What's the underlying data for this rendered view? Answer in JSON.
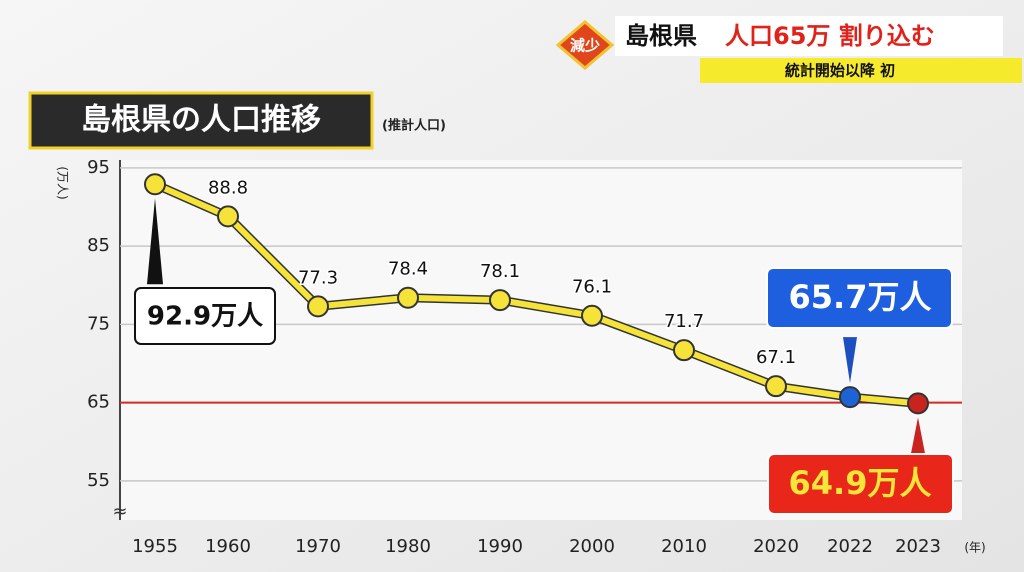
{
  "banner": {
    "badge": "減少",
    "prefecture": "島根県",
    "headline": "人口65万 割り込む",
    "sub": "統計開始以降 初"
  },
  "chart_data": {
    "type": "line",
    "title": "島根県の人口推移",
    "subtitle": "(推計人口)",
    "y_unit": "(万人)",
    "x_unit": "(年)",
    "categories": [
      "1955",
      "1960",
      "1970",
      "1980",
      "1990",
      "2000",
      "2010",
      "2020",
      "2022",
      "2023"
    ],
    "series": [
      {
        "name": "島根県の人口",
        "color": "#f5e33a",
        "values": [
          92.9,
          88.8,
          77.3,
          78.4,
          78.1,
          76.1,
          71.7,
          67.1,
          65.7,
          64.9
        ],
        "value_labels": [
          "92.9万人",
          "88.8",
          "77.3",
          "78.4",
          "78.1",
          "76.1",
          "71.7",
          "67.1",
          "65.7万人",
          "64.9万人"
        ],
        "point_colors": [
          "#f5e33a",
          "#f5e33a",
          "#f5e33a",
          "#f5e33a",
          "#f5e33a",
          "#f5e33a",
          "#f5e33a",
          "#f5e33a",
          "#1e63d6",
          "#c8231e"
        ]
      }
    ],
    "ylim": [
      50,
      96
    ],
    "yticks": [
      55,
      65,
      75,
      85,
      95
    ],
    "grid": true,
    "reference_line": {
      "value": 65,
      "color": "#d42a22"
    }
  }
}
